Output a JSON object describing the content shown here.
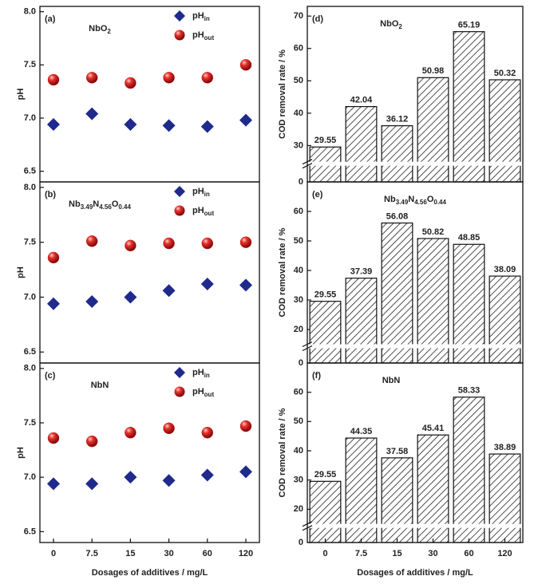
{
  "chart_data": [
    {
      "type": "scatter",
      "panel": "(a)",
      "title": "NbO2",
      "y_label": "pH",
      "legend": "upper right",
      "ylim": [
        6.4,
        8.05
      ],
      "yticks": [
        {
          "value": 6.5,
          "label": "6.5"
        },
        {
          "value": 7,
          "label": "7.0"
        },
        7.5,
        {
          "value": 8,
          "label": "8.0"
        }
      ],
      "series": [
        {
          "name": "pHin",
          "color": "#1f2a8c",
          "marker": "diamond",
          "values": [
            6.94,
            7.04,
            6.94,
            6.93,
            6.92,
            6.98
          ]
        },
        {
          "name": "pHout",
          "color": "#c8161b",
          "marker": "sphere",
          "values": [
            7.36,
            7.38,
            7.33,
            7.38,
            7.38,
            7.5
          ]
        }
      ]
    },
    {
      "type": "scatter",
      "panel": "(b)",
      "title": "Nb3.49N4.56O0.44",
      "y_label": "pH",
      "legend": "upper right",
      "ylim": [
        6.4,
        8.05
      ],
      "yticks": [
        {
          "value": 6.5,
          "label": "6.5"
        },
        {
          "value": 7,
          "label": "7.0"
        },
        7.5,
        {
          "value": 8,
          "label": "8.0"
        }
      ],
      "series": [
        {
          "name": "pHin",
          "color": "#1f2a8c",
          "marker": "diamond",
          "values": [
            6.94,
            6.96,
            7.0,
            7.06,
            7.12,
            7.11
          ]
        },
        {
          "name": "pHout",
          "color": "#c8161b",
          "marker": "sphere",
          "values": [
            7.36,
            7.51,
            7.47,
            7.49,
            7.49,
            7.5
          ]
        }
      ]
    },
    {
      "type": "scatter",
      "panel": "(c)",
      "title": "NbN",
      "y_label": "pH",
      "x_label": "Dosages of additives / mg/L",
      "legend": "upper right",
      "categories": [
        "0",
        "7.5",
        "15",
        "30",
        "60",
        "120"
      ],
      "ylim": [
        6.4,
        8.05
      ],
      "yticks": [
        {
          "value": 6.5,
          "label": "6.5"
        },
        {
          "value": 7,
          "label": "7.0"
        },
        7.5,
        {
          "value": 8,
          "label": "8.0"
        }
      ],
      "series": [
        {
          "name": "pHin",
          "color": "#1f2a8c",
          "marker": "diamond",
          "values": [
            6.94,
            6.94,
            7.0,
            6.97,
            7.02,
            7.05
          ]
        },
        {
          "name": "pHout",
          "color": "#c8161b",
          "marker": "sphere",
          "values": [
            7.36,
            7.33,
            7.41,
            7.45,
            7.41,
            7.47
          ]
        }
      ]
    },
    {
      "type": "bar",
      "panel": "(d)",
      "title": "NbO2",
      "y_label": "COD removal rate / %",
      "color": "#222222",
      "ylim": [
        0,
        73
      ],
      "ybreak": [
        5,
        25
      ],
      "yticks": [
        0,
        30,
        40,
        50,
        60,
        70
      ],
      "values": [
        29.55,
        42.04,
        36.12,
        50.98,
        65.19,
        50.32
      ]
    },
    {
      "type": "bar",
      "panel": "(e)",
      "title": "Nb3.49N4.56O0.44",
      "y_label": "COD removal rate / %",
      "color": "#222222",
      "ylim": [
        0,
        70
      ],
      "ybreak": [
        5,
        15
      ],
      "yticks": [
        0,
        20,
        30,
        40,
        50,
        60
      ],
      "values": [
        29.55,
        37.39,
        56.08,
        50.82,
        48.85,
        38.09
      ]
    },
    {
      "type": "bar",
      "panel": "(f)",
      "title": "NbN",
      "y_label": "COD removal rate / %",
      "x_label": "Dosages of additives / mg/L",
      "color": "#222222",
      "categories": [
        "0",
        "7.5",
        "15",
        "30",
        "60",
        "120"
      ],
      "ylim": [
        0,
        70
      ],
      "ybreak": [
        5,
        15
      ],
      "yticks": [
        0,
        20,
        30,
        40,
        50,
        60
      ],
      "values": [
        29.55,
        44.35,
        37.58,
        45.41,
        58.33,
        38.89
      ]
    }
  ]
}
